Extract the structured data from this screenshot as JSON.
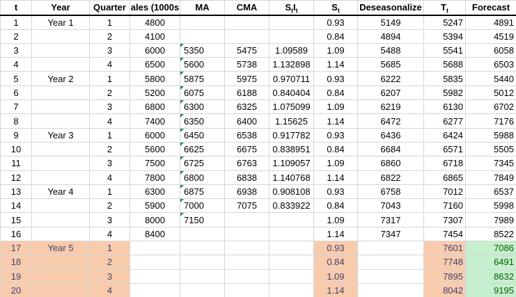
{
  "colors": {
    "highlight_orange_bg": "#F8CBAD",
    "highlight_orange_text": "#3F3F6F",
    "forecast_green_bg": "#C6EFCE",
    "forecast_green_text": "#006100",
    "gridline": "#D6D6D6",
    "header_border": "#000000",
    "error_indicator_green": "#1E8E3E"
  },
  "icons": {
    "error_indicator": "green-triangle-top-left"
  },
  "table": {
    "columns": [
      {
        "key": "t",
        "label": "t"
      },
      {
        "key": "year",
        "label": "Year"
      },
      {
        "key": "quarter",
        "label": "Quarter"
      },
      {
        "key": "sales",
        "label": "ales (1000s"
      },
      {
        "key": "ma",
        "label": "MA"
      },
      {
        "key": "cma",
        "label": "CMA"
      },
      {
        "key": "stit",
        "segments": [
          {
            "text": "S"
          },
          {
            "text": "t",
            "sub": true
          },
          {
            "text": "I"
          },
          {
            "text": "t",
            "sub": true
          }
        ]
      },
      {
        "key": "st",
        "segments": [
          {
            "text": "S"
          },
          {
            "text": "t",
            "sub": true
          }
        ]
      },
      {
        "key": "deseason",
        "label": "Deseasonalize"
      },
      {
        "key": "tt",
        "segments": [
          {
            "text": "T"
          },
          {
            "text": "t",
            "sub": true
          }
        ]
      },
      {
        "key": "forecast",
        "label": "Forecast"
      }
    ],
    "rows": [
      {
        "t": "1",
        "year": "Year 1",
        "quarter": "1",
        "sales": "4800",
        "ma": "",
        "cma": "",
        "stit": "",
        "st": "0.93",
        "deseason": "5149",
        "tt": "5247",
        "forecast": "4891",
        "highlighted": false
      },
      {
        "t": "2",
        "year": "",
        "quarter": "2",
        "sales": "4100",
        "ma": "",
        "cma": "",
        "stit": "",
        "st": "0.84",
        "deseason": "4894",
        "tt": "5394",
        "forecast": "4519",
        "highlighted": false
      },
      {
        "t": "3",
        "year": "",
        "quarter": "3",
        "sales": "6000",
        "ma": "5350",
        "cma": "5475",
        "stit": "1.09589",
        "st": "1.09",
        "deseason": "5488",
        "tt": "5541",
        "forecast": "6058",
        "highlighted": false
      },
      {
        "t": "4",
        "year": "",
        "quarter": "4",
        "sales": "6500",
        "ma": "5600",
        "cma": "5738",
        "stit": "1.132898",
        "st": "1.14",
        "deseason": "5685",
        "tt": "5688",
        "forecast": "6503",
        "highlighted": false
      },
      {
        "t": "5",
        "year": "Year 2",
        "quarter": "1",
        "sales": "5800",
        "ma": "5875",
        "cma": "5975",
        "stit": "0.970711",
        "st": "0.93",
        "deseason": "6222",
        "tt": "5835",
        "forecast": "5440",
        "highlighted": false
      },
      {
        "t": "6",
        "year": "",
        "quarter": "2",
        "sales": "5200",
        "ma": "6075",
        "cma": "6188",
        "stit": "0.840404",
        "st": "0.84",
        "deseason": "6207",
        "tt": "5982",
        "forecast": "5012",
        "highlighted": false
      },
      {
        "t": "7",
        "year": "",
        "quarter": "3",
        "sales": "6800",
        "ma": "6300",
        "cma": "6325",
        "stit": "1.075099",
        "st": "1.09",
        "deseason": "6219",
        "tt": "6130",
        "forecast": "6702",
        "highlighted": false
      },
      {
        "t": "8",
        "year": "",
        "quarter": "4",
        "sales": "7400",
        "ma": "6350",
        "cma": "6400",
        "stit": "1.15625",
        "st": "1.14",
        "deseason": "6472",
        "tt": "6277",
        "forecast": "7176",
        "highlighted": false
      },
      {
        "t": "9",
        "year": "Year 3",
        "quarter": "1",
        "sales": "6000",
        "ma": "6450",
        "cma": "6538",
        "stit": "0.917782",
        "st": "0.93",
        "deseason": "6436",
        "tt": "6424",
        "forecast": "5988",
        "highlighted": false
      },
      {
        "t": "10",
        "year": "",
        "quarter": "2",
        "sales": "5600",
        "ma": "6625",
        "cma": "6675",
        "stit": "0.838951",
        "st": "0.84",
        "deseason": "6684",
        "tt": "6571",
        "forecast": "5505",
        "highlighted": false
      },
      {
        "t": "11",
        "year": "",
        "quarter": "3",
        "sales": "7500",
        "ma": "6725",
        "cma": "6763",
        "stit": "1.109057",
        "st": "1.09",
        "deseason": "6860",
        "tt": "6718",
        "forecast": "7345",
        "highlighted": false
      },
      {
        "t": "12",
        "year": "",
        "quarter": "4",
        "sales": "7800",
        "ma": "6800",
        "cma": "6838",
        "stit": "1.140768",
        "st": "1.14",
        "deseason": "6822",
        "tt": "6865",
        "forecast": "7849",
        "highlighted": false
      },
      {
        "t": "13",
        "year": "Year 4",
        "quarter": "1",
        "sales": "6300",
        "ma": "6875",
        "cma": "6938",
        "stit": "0.908108",
        "st": "0.93",
        "deseason": "6758",
        "tt": "7012",
        "forecast": "6537",
        "highlighted": false
      },
      {
        "t": "14",
        "year": "",
        "quarter": "2",
        "sales": "5900",
        "ma": "7000",
        "cma": "7075",
        "stit": "0.833922",
        "st": "0.84",
        "deseason": "7043",
        "tt": "7160",
        "forecast": "5998",
        "highlighted": false
      },
      {
        "t": "15",
        "year": "",
        "quarter": "3",
        "sales": "8000",
        "ma": "7150",
        "cma": "",
        "stit": "",
        "st": "1.09",
        "deseason": "7317",
        "tt": "7307",
        "forecast": "7989",
        "highlighted": false
      },
      {
        "t": "16",
        "year": "",
        "quarter": "4",
        "sales": "8400",
        "ma": "",
        "cma": "",
        "stit": "",
        "st": "1.14",
        "deseason": "7347",
        "tt": "7454",
        "forecast": "8522",
        "highlighted": false
      },
      {
        "t": "17",
        "year": "Year 5",
        "quarter": "1",
        "sales": "",
        "ma": "",
        "cma": "",
        "stit": "",
        "st": "0.93",
        "deseason": "",
        "tt": "7601",
        "forecast": "7086",
        "highlighted": true
      },
      {
        "t": "18",
        "year": "",
        "quarter": "2",
        "sales": "",
        "ma": "",
        "cma": "",
        "stit": "",
        "st": "0.84",
        "deseason": "",
        "tt": "7748",
        "forecast": "6491",
        "highlighted": true
      },
      {
        "t": "19",
        "year": "",
        "quarter": "3",
        "sales": "",
        "ma": "",
        "cma": "",
        "stit": "",
        "st": "1.09",
        "deseason": "",
        "tt": "7895",
        "forecast": "8632",
        "highlighted": true
      },
      {
        "t": "20",
        "year": "",
        "quarter": "4",
        "sales": "",
        "ma": "",
        "cma": "",
        "stit": "",
        "st": "1.14",
        "deseason": "",
        "tt": "8042",
        "forecast": "9195",
        "highlighted": true
      }
    ]
  }
}
